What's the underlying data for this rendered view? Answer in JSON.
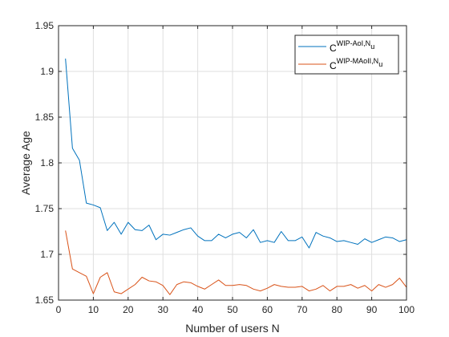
{
  "chart_data": {
    "type": "line",
    "xlabel": "Number of users N",
    "ylabel": "Average Age",
    "xlim": [
      0,
      100
    ],
    "ylim": [
      1.65,
      1.95
    ],
    "xticks": [
      0,
      10,
      20,
      30,
      40,
      50,
      60,
      70,
      80,
      90,
      100
    ],
    "yticks": [
      1.65,
      1.7,
      1.75,
      1.8,
      1.85,
      1.9,
      1.95
    ],
    "xtick_labels": [
      "0",
      "10",
      "20",
      "30",
      "40",
      "50",
      "60",
      "70",
      "80",
      "90",
      "100"
    ],
    "ytick_labels": [
      "1.65",
      "1.7",
      "1.75",
      "1.8",
      "1.85",
      "1.9",
      "1.95"
    ],
    "grid": true,
    "legend_position": "top-right",
    "x": [
      2,
      4,
      6,
      8,
      10,
      12,
      14,
      16,
      18,
      20,
      22,
      24,
      26,
      28,
      30,
      32,
      34,
      36,
      38,
      40,
      42,
      44,
      46,
      48,
      50,
      52,
      54,
      56,
      58,
      60,
      62,
      64,
      66,
      68,
      70,
      72,
      74,
      76,
      78,
      80,
      82,
      84,
      86,
      88,
      90,
      92,
      94,
      96,
      98,
      100
    ],
    "series": [
      {
        "name": "C",
        "name_sup": "WIP-AoI,N",
        "name_sub": "u",
        "color": "#0072BD",
        "values": [
          1.914,
          1.816,
          1.803,
          1.756,
          1.754,
          1.751,
          1.726,
          1.735,
          1.722,
          1.735,
          1.727,
          1.726,
          1.732,
          1.716,
          1.722,
          1.721,
          1.724,
          1.727,
          1.729,
          1.72,
          1.715,
          1.715,
          1.722,
          1.718,
          1.722,
          1.724,
          1.718,
          1.727,
          1.713,
          1.715,
          1.713,
          1.725,
          1.715,
          1.715,
          1.719,
          1.707,
          1.724,
          1.72,
          1.718,
          1.714,
          1.715,
          1.713,
          1.711,
          1.717,
          1.713,
          1.716,
          1.719,
          1.718,
          1.714,
          1.716
        ]
      },
      {
        "name": "C",
        "name_sup": "WIP-MAoII,N",
        "name_sub": "u",
        "color": "#D95319",
        "values": [
          1.726,
          1.684,
          1.68,
          1.676,
          1.657,
          1.675,
          1.68,
          1.659,
          1.657,
          1.662,
          1.667,
          1.675,
          1.671,
          1.67,
          1.666,
          1.656,
          1.667,
          1.67,
          1.669,
          1.665,
          1.662,
          1.667,
          1.672,
          1.666,
          1.666,
          1.667,
          1.666,
          1.662,
          1.66,
          1.663,
          1.667,
          1.665,
          1.664,
          1.664,
          1.665,
          1.66,
          1.662,
          1.666,
          1.66,
          1.665,
          1.665,
          1.667,
          1.663,
          1.666,
          1.66,
          1.667,
          1.664,
          1.667,
          1.674,
          1.664
        ]
      }
    ]
  }
}
